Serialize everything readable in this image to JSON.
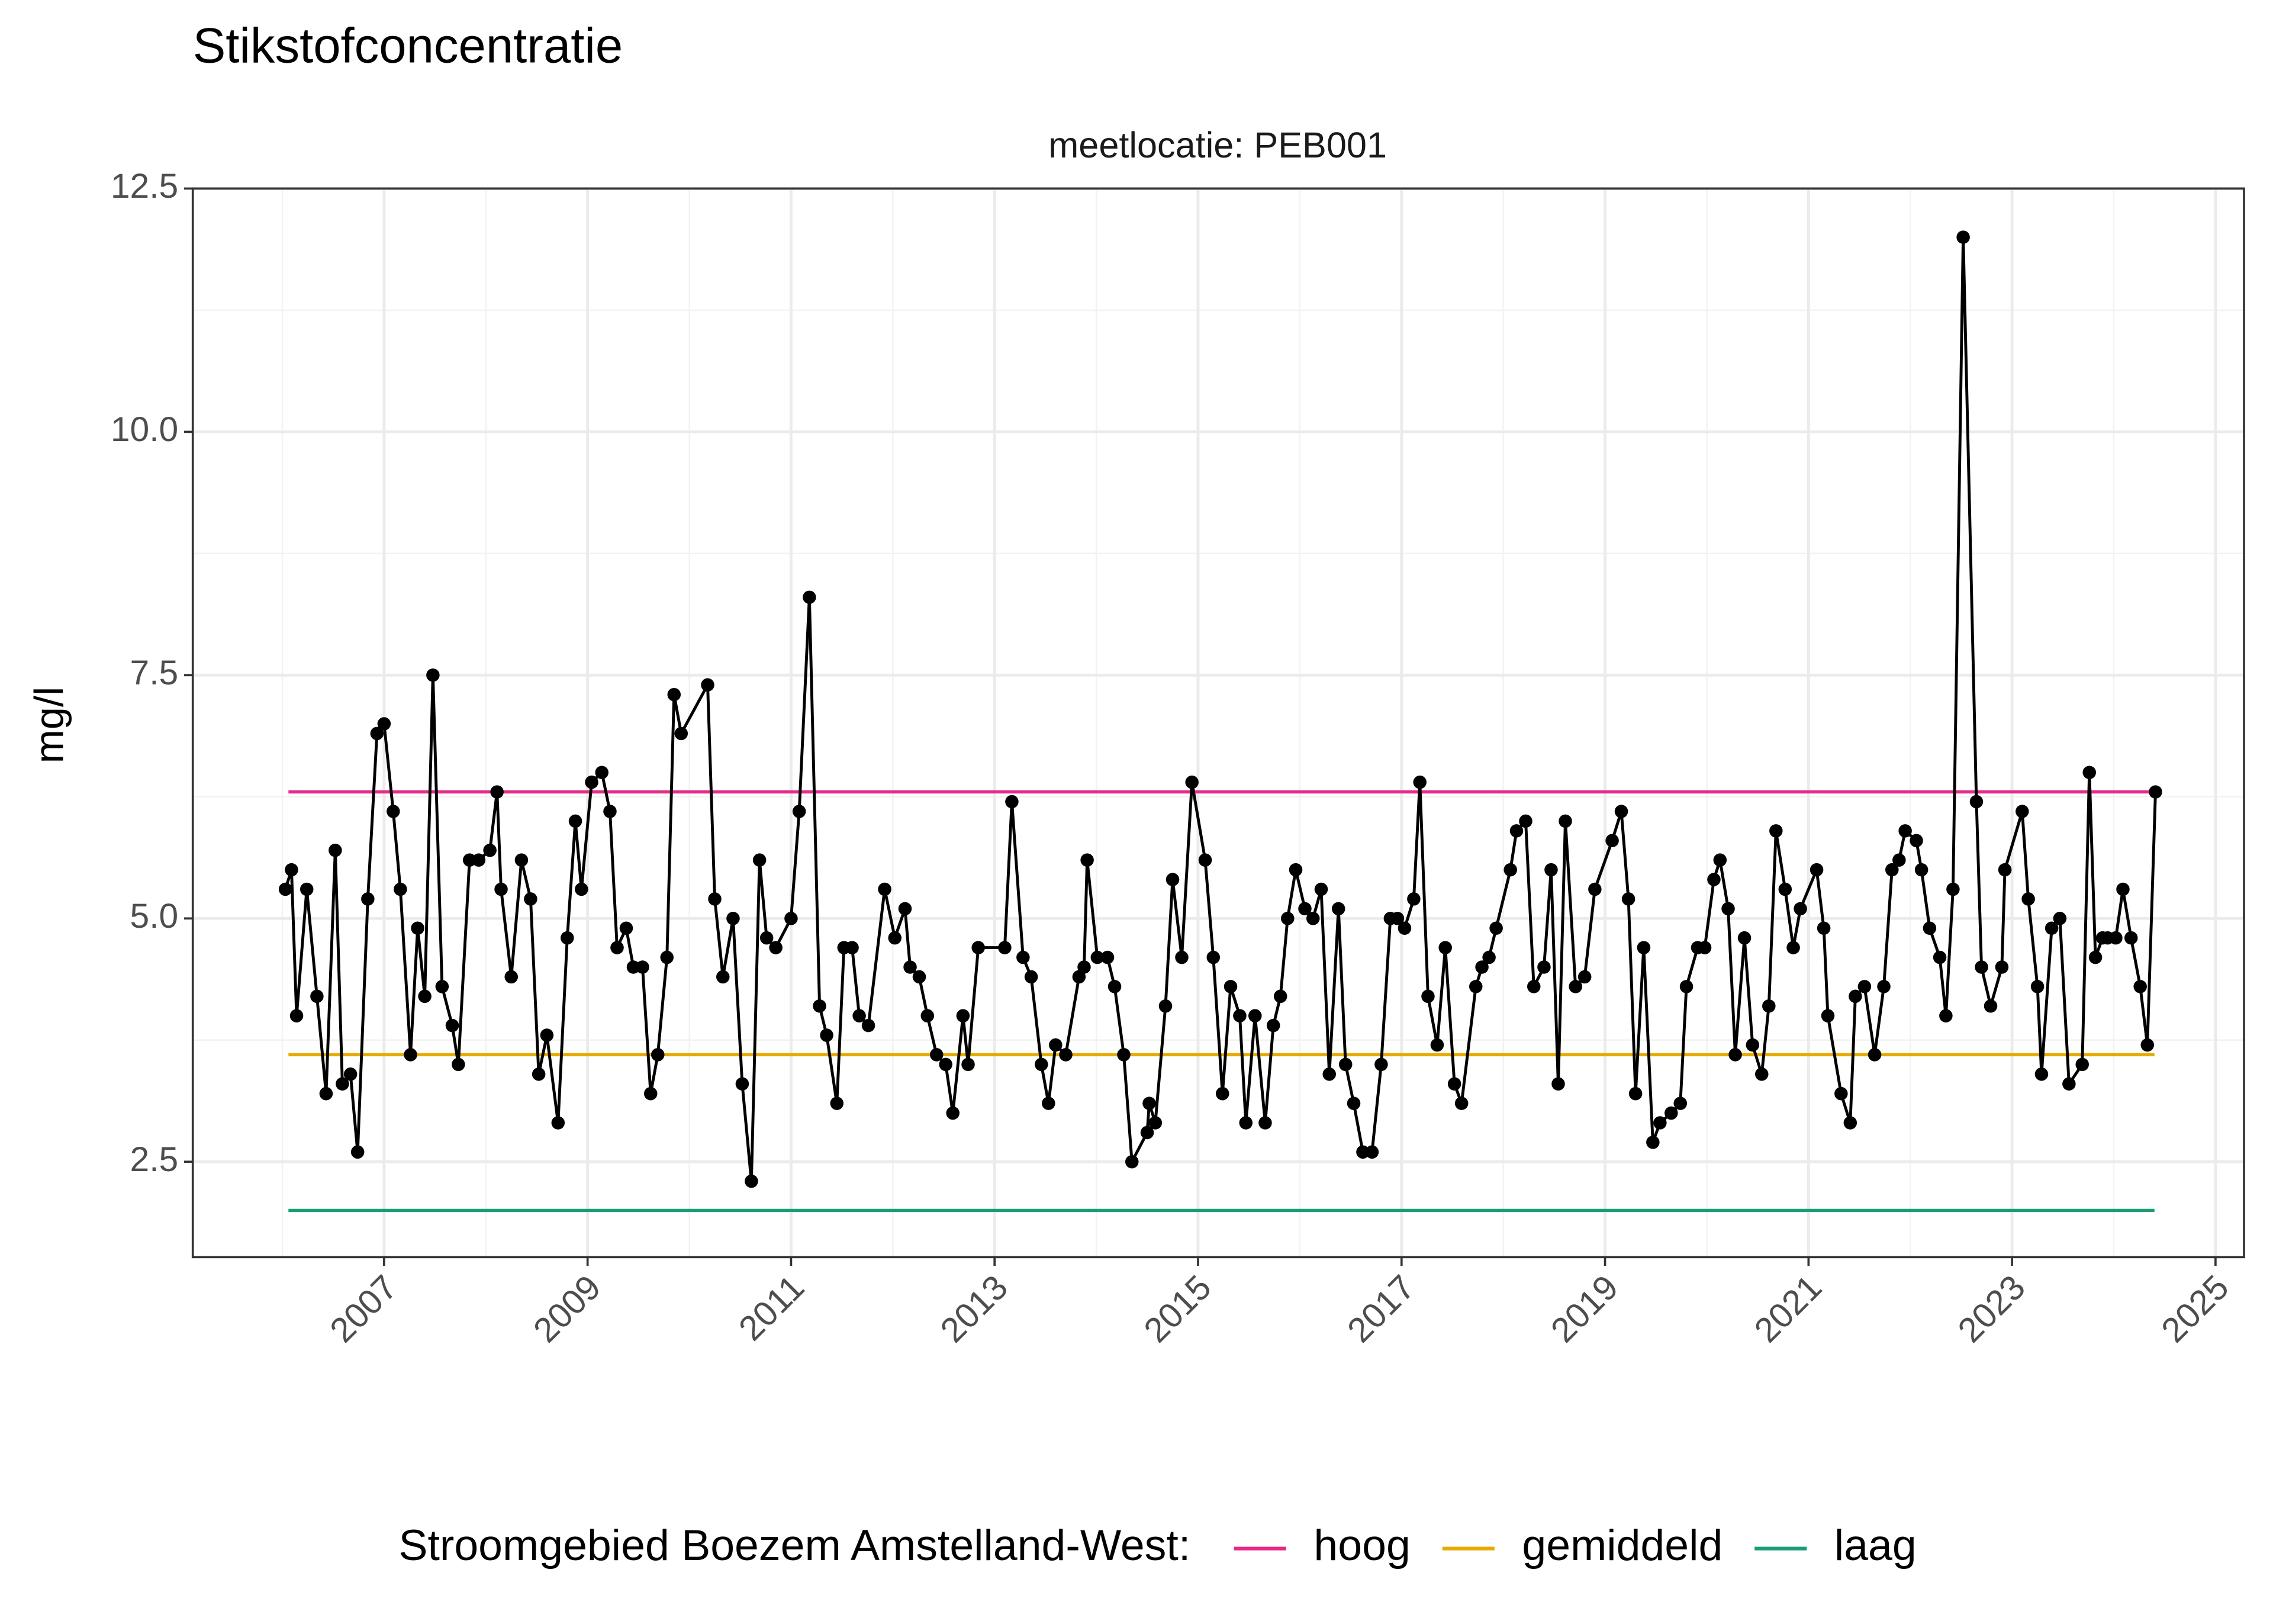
{
  "chart_data": {
    "type": "line",
    "title": "Stikstofconcentratie",
    "facet_label": "meetlocatie: PEB001",
    "y_label": "mg/l",
    "legend_title": "Stroomgebied Boezem Amstelland-West:",
    "legend_position": "bottom",
    "grid": true,
    "xlim": [
      2005.12,
      2025.28
    ],
    "xticks": [
      2007,
      2009,
      2011,
      2013,
      2015,
      2017,
      2019,
      2021,
      2023,
      2025
    ],
    "ylim": [
      1.52,
      12.5
    ],
    "yticks": [
      {
        "value": 2.5,
        "label": "2.5"
      },
      {
        "value": 5,
        "label": "5.0"
      },
      {
        "value": 7.5,
        "label": "7.5"
      },
      {
        "value": 10,
        "label": "10.0"
      },
      {
        "value": 12.5,
        "label": "12.5"
      }
    ],
    "measurements": {
      "color": "#000000",
      "x": [
        2006.03,
        2006.09,
        2006.14,
        2006.24,
        2006.34,
        2006.43,
        2006.52,
        2006.59,
        2006.67,
        2006.74,
        2006.84,
        2006.93,
        2007.0,
        2007.09,
        2007.16,
        2007.26,
        2007.33,
        2007.4,
        2007.48,
        2007.57,
        2007.67,
        2007.73,
        2007.84,
        2007.93,
        2008.04,
        2008.11,
        2008.15,
        2008.25,
        2008.35,
        2008.44,
        2008.52,
        2008.6,
        2008.71,
        2008.8,
        2008.88,
        2008.94,
        2009.04,
        2009.14,
        2009.22,
        2009.29,
        2009.38,
        2009.45,
        2009.54,
        2009.62,
        2009.69,
        2009.78,
        2009.85,
        2009.92,
        2010.18,
        2010.25,
        2010.33,
        2010.43,
        2010.52,
        2010.61,
        2010.69,
        2010.76,
        2010.85,
        2011.0,
        2011.08,
        2011.18,
        2011.28,
        2011.35,
        2011.45,
        2011.52,
        2011.6,
        2011.67,
        2011.76,
        2011.92,
        2012.02,
        2012.12,
        2012.17,
        2012.26,
        2012.34,
        2012.43,
        2012.52,
        2012.59,
        2012.69,
        2012.74,
        2012.84,
        2013.1,
        2013.17,
        2013.28,
        2013.36,
        2013.46,
        2013.53,
        2013.6,
        2013.7,
        2013.83,
        2013.88,
        2013.91,
        2014.01,
        2014.11,
        2014.18,
        2014.27,
        2014.35,
        2014.5,
        2014.52,
        2014.58,
        2014.68,
        2014.75,
        2014.84,
        2014.94,
        2015.07,
        2015.15,
        2015.24,
        2015.32,
        2015.41,
        2015.47,
        2015.56,
        2015.66,
        2015.74,
        2015.81,
        2015.88,
        2015.96,
        2016.05,
        2016.13,
        2016.21,
        2016.29,
        2016.38,
        2016.45,
        2016.53,
        2016.62,
        2016.71,
        2016.8,
        2016.89,
        2016.96,
        2017.03,
        2017.12,
        2017.18,
        2017.26,
        2017.35,
        2017.43,
        2017.52,
        2017.59,
        2017.73,
        2017.79,
        2017.86,
        2017.93,
        2018.07,
        2018.13,
        2018.22,
        2018.3,
        2018.4,
        2018.47,
        2018.54,
        2018.61,
        2018.71,
        2018.8,
        2018.9,
        2019.07,
        2019.16,
        2019.23,
        2019.3,
        2019.38,
        2019.47,
        2019.54,
        2019.65,
        2019.74,
        2019.8,
        2019.91,
        2019.98,
        2020.07,
        2020.13,
        2020.21,
        2020.28,
        2020.37,
        2020.45,
        2020.54,
        2020.61,
        2020.68,
        2020.77,
        2020.85,
        2020.92,
        2021.08,
        2021.15,
        2021.19,
        2021.32,
        2021.41,
        2021.46,
        2021.55,
        2021.65,
        2021.74,
        2021.82,
        2021.89,
        2021.95,
        2022.06,
        2022.11,
        2022.19,
        2022.29,
        2022.35,
        2022.42,
        2022.52,
        2022.65,
        2022.7,
        2022.79,
        2022.9,
        2022.93,
        2023.1,
        2023.16,
        2023.25,
        2023.29,
        2023.39,
        2023.47,
        2023.56,
        2023.69,
        2023.76,
        2023.82,
        2023.89,
        2023.94,
        2024.02,
        2024.09,
        2024.17,
        2024.26,
        2024.33,
        2024.41
      ],
      "values": [
        5.3,
        5.5,
        4.0,
        5.3,
        4.2,
        3.2,
        5.7,
        3.3,
        3.4,
        2.6,
        5.2,
        6.9,
        7.0,
        6.1,
        5.3,
        3.6,
        4.9,
        4.2,
        7.5,
        4.3,
        3.9,
        3.5,
        5.6,
        5.6,
        5.7,
        6.3,
        5.3,
        4.4,
        5.6,
        5.2,
        3.4,
        3.8,
        2.9,
        4.8,
        6.0,
        5.3,
        6.4,
        6.5,
        6.1,
        4.7,
        4.9,
        4.5,
        4.5,
        3.2,
        3.6,
        4.6,
        7.3,
        6.9,
        7.4,
        5.2,
        4.4,
        5.0,
        3.3,
        2.3,
        5.6,
        4.8,
        4.7,
        5.0,
        6.1,
        8.3,
        4.1,
        3.8,
        3.1,
        4.7,
        4.7,
        4.0,
        3.9,
        5.3,
        4.8,
        5.1,
        4.5,
        4.4,
        4.0,
        3.6,
        3.5,
        3.0,
        4.0,
        3.5,
        4.7,
        4.7,
        6.2,
        4.6,
        4.4,
        3.5,
        3.1,
        3.7,
        3.6,
        4.4,
        4.5,
        5.6,
        4.6,
        4.6,
        4.3,
        3.6,
        2.5,
        2.8,
        3.1,
        2.9,
        4.1,
        5.4,
        4.6,
        6.4,
        5.6,
        4.6,
        3.2,
        4.3,
        4.0,
        2.9,
        4.0,
        2.9,
        3.9,
        4.2,
        5.0,
        5.5,
        5.1,
        5.0,
        5.3,
        3.4,
        5.1,
        3.5,
        3.1,
        2.6,
        2.6,
        3.5,
        5.0,
        5.0,
        4.9,
        5.2,
        6.4,
        4.2,
        3.7,
        4.7,
        3.3,
        3.1,
        4.3,
        4.5,
        4.6,
        4.9,
        5.5,
        5.9,
        6.0,
        4.3,
        4.5,
        5.5,
        3.3,
        6.0,
        4.3,
        4.4,
        5.3,
        5.8,
        6.1,
        5.2,
        3.2,
        4.7,
        2.7,
        2.9,
        3.0,
        3.1,
        4.3,
        4.7,
        4.7,
        5.4,
        5.6,
        5.1,
        3.6,
        4.8,
        3.7,
        3.4,
        4.1,
        5.9,
        5.3,
        4.7,
        5.1,
        5.5,
        4.9,
        4.0,
        3.2,
        2.9,
        4.2,
        4.3,
        3.6,
        4.3,
        5.5,
        5.6,
        5.9,
        5.8,
        5.5,
        4.9,
        4.6,
        4.0,
        5.3,
        12.0,
        6.2,
        4.5,
        4.1,
        4.5,
        5.5,
        6.1,
        5.2,
        4.3,
        3.4,
        4.9,
        5.0,
        3.3,
        3.5,
        6.5,
        4.6,
        4.8,
        4.8,
        4.8,
        5.3,
        4.8,
        4.3,
        3.7,
        6.3
      ]
    },
    "series": [
      {
        "name": "hoog",
        "color": "#e7298a",
        "x": [
          2006.06,
          2024.4
        ],
        "values": [
          6.3,
          6.3
        ]
      },
      {
        "name": "gemiddeld",
        "color": "#e6ab02",
        "x": [
          2006.06,
          2024.4
        ],
        "values": [
          3.6,
          3.6
        ]
      },
      {
        "name": "laag",
        "color": "#1b9e77",
        "x": [
          2006.06,
          2024.4
        ],
        "values": [
          2.0,
          2.0
        ]
      }
    ]
  }
}
